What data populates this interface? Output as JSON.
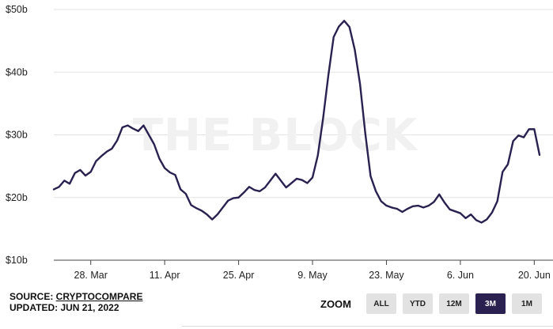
{
  "watermark": "THE BLOCK",
  "colors": {
    "line": "#2a2150",
    "grid": "#e3e3e3",
    "axis": "#444444",
    "active_button": "#2a2150",
    "button": "#e2e2e2"
  },
  "chart_data": {
    "type": "line",
    "title": "",
    "xlabel": "",
    "ylabel": "",
    "ylim": [
      10,
      50
    ],
    "yticks": [
      "$10b",
      "$20b",
      "$30b",
      "$40b",
      "$50b"
    ],
    "ytick_values": [
      10,
      20,
      30,
      40,
      50
    ],
    "xticks": [
      "28. Mar",
      "11. Apr",
      "25. Apr",
      "9. May",
      "23. May",
      "6. Jun",
      "20. Jun"
    ],
    "xtick_values": [
      "2022-03-28",
      "2022-04-11",
      "2022-04-25",
      "2022-05-09",
      "2022-05-23",
      "2022-06-06",
      "2022-06-20"
    ],
    "grid": true,
    "series": [
      {
        "x_start": "2022-03-21",
        "x_end": "2022-06-21",
        "values": [
          21.3,
          21.7,
          22.7,
          22.2,
          23.9,
          24.4,
          23.5,
          24.1,
          25.8,
          26.6,
          27.3,
          27.8,
          29.1,
          31.2,
          31.5,
          31.0,
          30.6,
          31.5,
          30.0,
          28.5,
          26.2,
          24.7,
          24.0,
          23.6,
          21.3,
          20.6,
          18.8,
          18.3,
          17.9,
          17.3,
          16.5,
          17.3,
          18.4,
          19.5,
          19.9,
          20.0,
          20.8,
          21.7,
          21.2,
          21.0,
          21.6,
          22.7,
          23.8,
          22.7,
          21.6,
          22.3,
          23.0,
          22.8,
          22.3,
          23.2,
          26.7,
          32.6,
          39.5,
          45.6,
          47.3,
          48.2,
          47.2,
          43.6,
          38.1,
          30.2,
          23.4,
          21.0,
          19.4,
          18.7,
          18.4,
          18.2,
          17.7,
          18.2,
          18.6,
          18.7,
          18.4,
          18.7,
          19.3,
          20.5,
          19.2,
          18.1,
          17.8,
          17.5,
          16.7,
          17.3,
          16.4,
          16.0,
          16.5,
          17.6,
          19.4,
          24.1,
          25.3,
          29.0,
          29.9,
          29.6,
          30.9,
          30.9,
          26.8
        ]
      }
    ]
  },
  "footer": {
    "source_prefix": "SOURCE: ",
    "source_name": "CRYPTOCOMPARE",
    "updated": "UPDATED: JUN 21, 2022"
  },
  "zoom": {
    "label": "ZOOM",
    "buttons": [
      "ALL",
      "YTD",
      "12M",
      "3M",
      "1M"
    ],
    "active": "3M"
  }
}
